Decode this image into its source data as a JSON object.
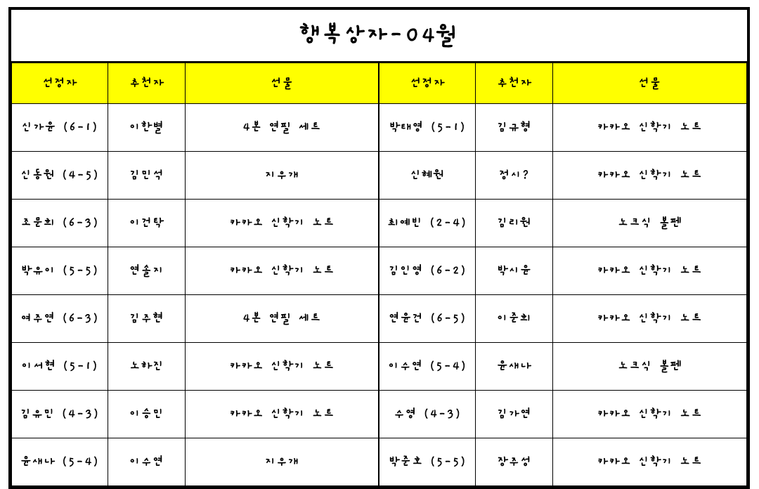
{
  "title": "행복상자-04월",
  "headers": {
    "selector": "선정자",
    "recommender": "추천자",
    "gift": "선물"
  },
  "rows": [
    {
      "left": {
        "selector": "신가윤 (6-1)",
        "recommender": "이한별",
        "gift": "4본 연필 세트"
      },
      "right": {
        "selector": "박태영 (5-1)",
        "recommender": "김규형",
        "gift": "카카오 신학기 노트"
      }
    },
    {
      "left": {
        "selector": "신동원 (4-5)",
        "recommender": "김민석",
        "gift": "지우개"
      },
      "right": {
        "selector": "신혜원",
        "recommender": "정시?",
        "gift": "카카오 신학기 노트"
      }
    },
    {
      "left": {
        "selector": "조문희 (6-3)",
        "recommender": "이건탁",
        "gift": "카카오 신학기 노트"
      },
      "right": {
        "selector": "최예빈 (2-4)",
        "recommender": "김리원",
        "gift": "노크식 볼펜"
      }
    },
    {
      "left": {
        "selector": "박유이 (5-5)",
        "recommender": "연솔지",
        "gift": "카카오 신학기 노트"
      },
      "right": {
        "selector": "김인영 (6-2)",
        "recommender": "박시윤",
        "gift": "카카오 신학기 노트"
      }
    },
    {
      "left": {
        "selector": "여주연 (6-3)",
        "recommender": "김주현",
        "gift": "4본 연필 세트"
      },
      "right": {
        "selector": "연윤건 (6-5)",
        "recommender": "이준희",
        "gift": "카카오 신학기 노트"
      }
    },
    {
      "left": {
        "selector": "이서현 (5-1)",
        "recommender": "노하진",
        "gift": "카카오 신학기 노트"
      },
      "right": {
        "selector": "이수연 (5-4)",
        "recommender": "윤새나",
        "gift": "노크식 볼펜"
      }
    },
    {
      "left": {
        "selector": "김유민 (4-3)",
        "recommender": "이승민",
        "gift": "카카오 신학기 노트"
      },
      "right": {
        "selector": "수영 (4-3)",
        "recommender": "김가연",
        "gift": "카카오 신학기 노트"
      }
    },
    {
      "left": {
        "selector": "윤새나 (5-4)",
        "recommender": "이수연",
        "gift": "지우개"
      },
      "right": {
        "selector": "박준호 (5-5)",
        "recommender": "장주성",
        "gift": "카카오 신학기 노트"
      }
    }
  ],
  "colors": {
    "header_bg": "#ffff00",
    "border": "#000000",
    "background": "#ffffff",
    "text": "#000000"
  },
  "column_widths": {
    "selector": 137,
    "recommender": 110,
    "gift": 275
  }
}
